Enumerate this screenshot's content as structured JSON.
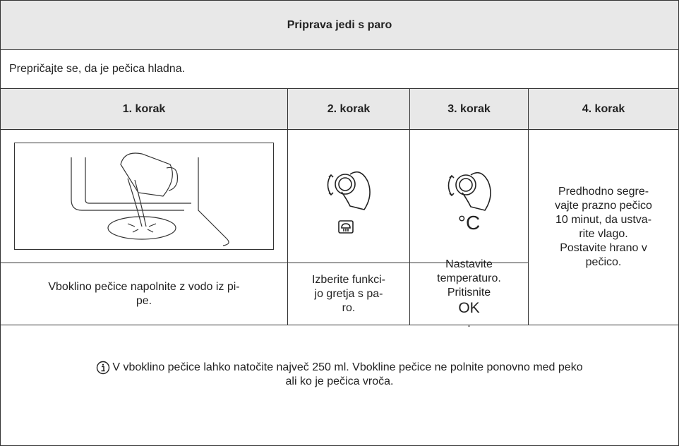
{
  "title": "Priprava jedi s paro",
  "intro": "Prepričajte se, da je pečica hladna.",
  "steps": [
    {
      "heading": "1. korak",
      "text": [
        "Vboklino pečice napolnite z vodo iz pi-",
        "pe."
      ]
    },
    {
      "heading": "2. korak",
      "text": [
        "Izberite funkci-",
        "jo gretja s pa-",
        "ro."
      ]
    },
    {
      "heading": "3. korak",
      "symbol": "°C",
      "text": [
        "Nastavite",
        "temperaturo.",
        "Pritisnite",
        "OK",
        "."
      ]
    },
    {
      "heading": "4. korak",
      "text": [
        "Predhodno segre-",
        "vajte prazno pečico",
        "10 minut, da ustva-",
        "rite vlago.",
        "Postavite hrano v",
        "pečico."
      ]
    }
  ],
  "note": [
    "V vboklino pečice lahko natočite največ 250 ml. Vbokline pečice ne polnite ponovno med peko",
    "ali ko je pečica vroča."
  ]
}
